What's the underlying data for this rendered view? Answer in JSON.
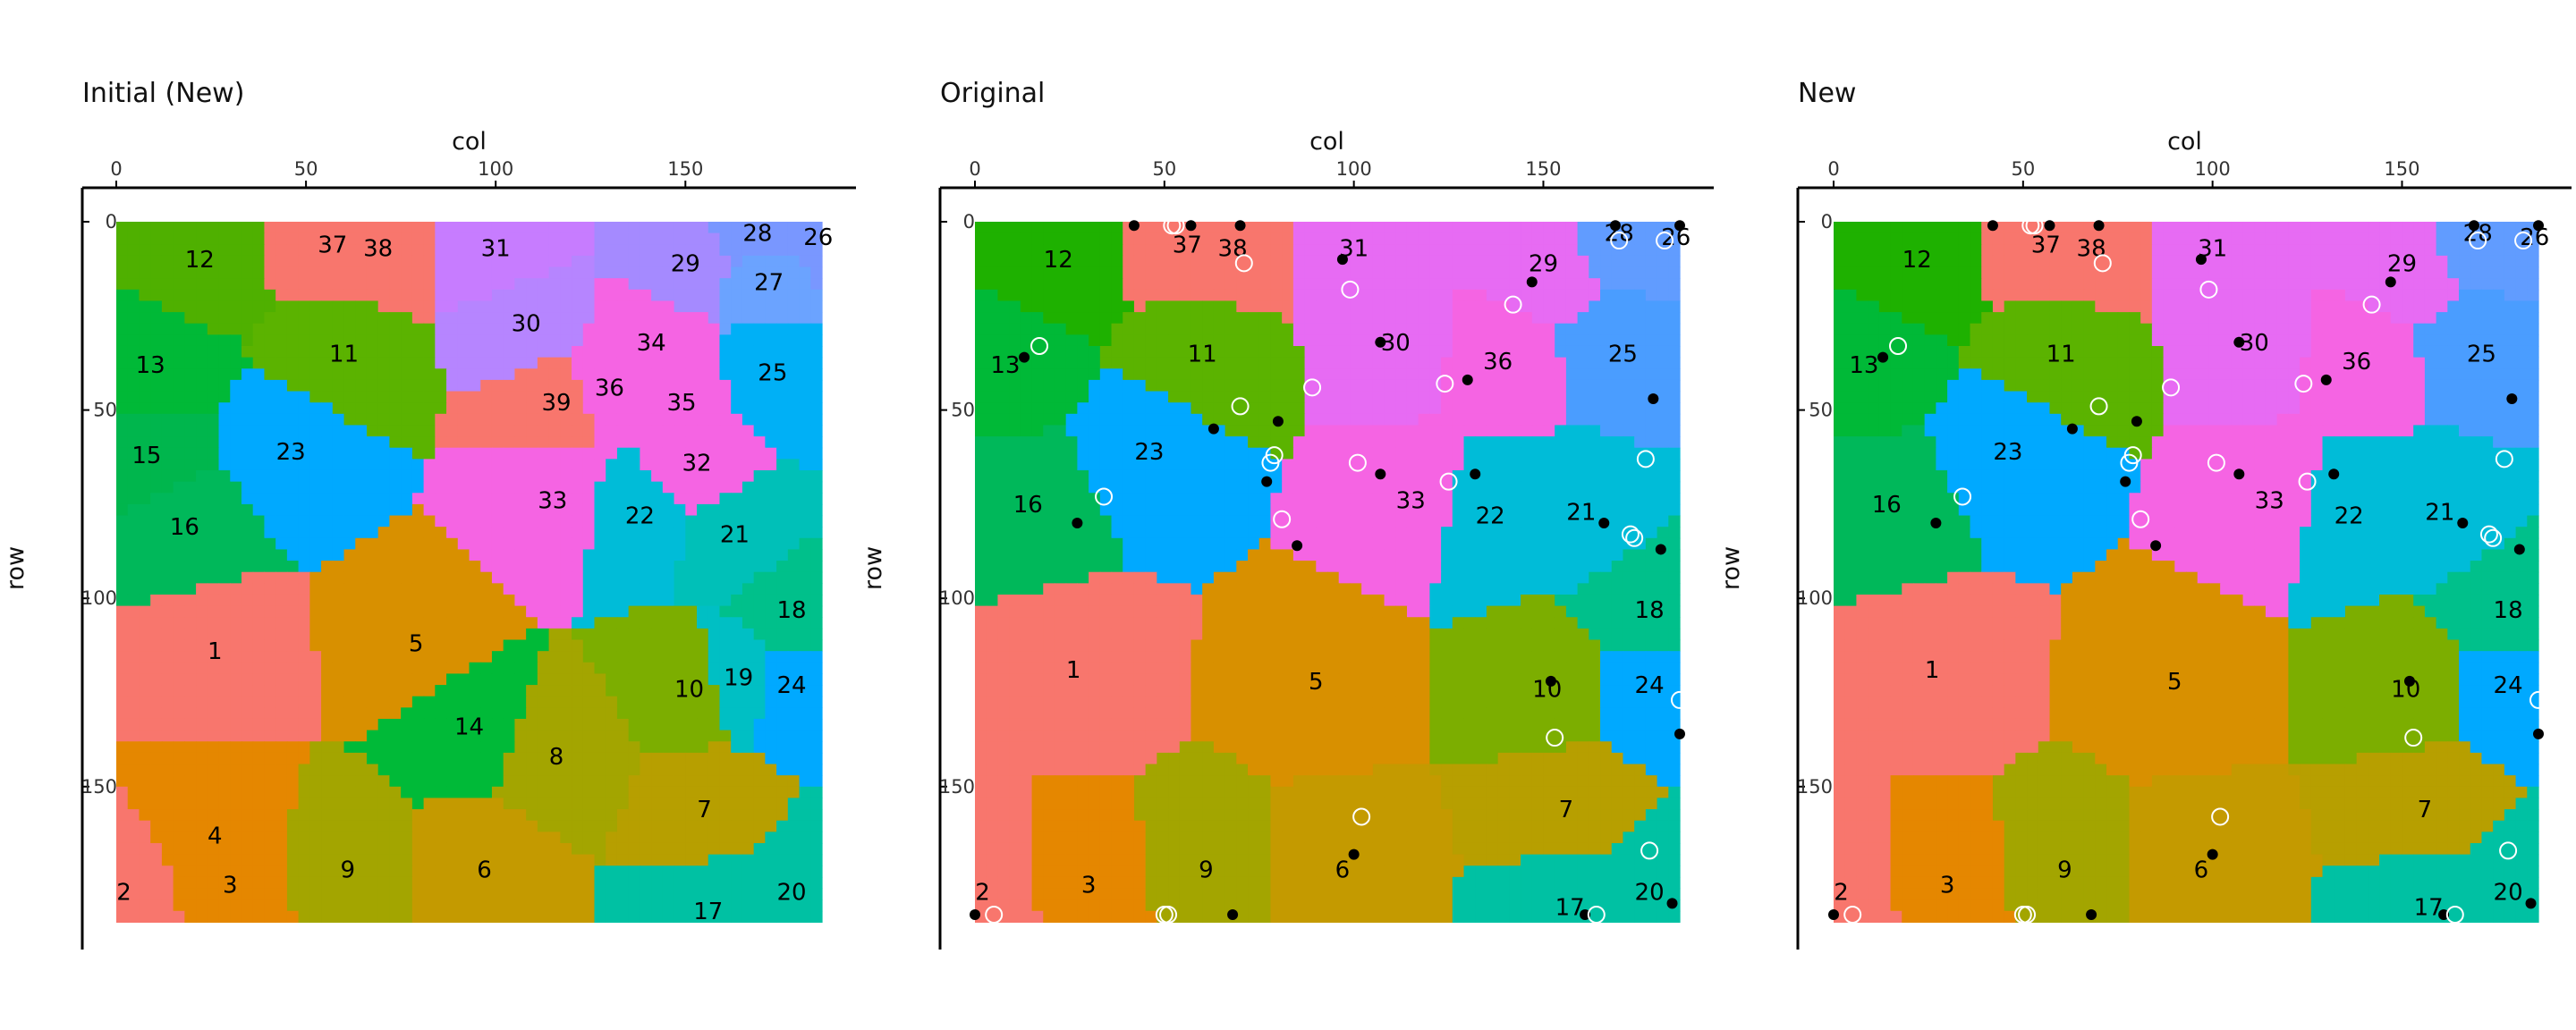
{
  "chart_data": [
    {
      "type": "heatmap",
      "title": "Initial (New)",
      "xlabel": "col",
      "ylabel": "row",
      "xlim": [
        0,
        186
      ],
      "ylim": [
        0,
        184
      ],
      "y_reversed": true,
      "x_ticks": [
        0,
        50,
        100,
        150
      ],
      "y_ticks": [
        0,
        50,
        100,
        150
      ],
      "grid": false,
      "regions": [
        {
          "label": "12",
          "col": 22,
          "row": 10,
          "color": "#4fb000"
        },
        {
          "label": "37",
          "col": 57,
          "row": 6,
          "color": "#f8766d"
        },
        {
          "label": "38",
          "col": 69,
          "row": 7,
          "color": "#f8766d"
        },
        {
          "label": "31",
          "col": 100,
          "row": 7,
          "color": "#c77cff"
        },
        {
          "label": "29",
          "col": 150,
          "row": 11,
          "color": "#a58aff"
        },
        {
          "label": "28",
          "col": 169,
          "row": 3,
          "color": "#7997ff"
        },
        {
          "label": "26",
          "col": 185,
          "row": 4,
          "color": "#7997ff"
        },
        {
          "label": "27",
          "col": 172,
          "row": 16,
          "color": "#6ba3ff"
        },
        {
          "label": "30",
          "col": 108,
          "row": 27,
          "color": "#b685ff"
        },
        {
          "label": "34",
          "col": 141,
          "row": 32,
          "color": "#f564e3"
        },
        {
          "label": "25",
          "col": 173,
          "row": 40,
          "color": "#00b0f6"
        },
        {
          "label": "13",
          "col": 9,
          "row": 38,
          "color": "#00b937"
        },
        {
          "label": "11",
          "col": 60,
          "row": 35,
          "color": "#5bb300"
        },
        {
          "label": "39",
          "col": 116,
          "row": 48,
          "color": "#f8766d"
        },
        {
          "label": "36",
          "col": 130,
          "row": 44,
          "color": "#f564e3"
        },
        {
          "label": "35",
          "col": 149,
          "row": 48,
          "color": "#f564e3"
        },
        {
          "label": "23",
          "col": 46,
          "row": 61,
          "color": "#00a9ff"
        },
        {
          "label": "15",
          "col": 8,
          "row": 62,
          "color": "#00b64d"
        },
        {
          "label": "32",
          "col": 153,
          "row": 64,
          "color": "#f564e3"
        },
        {
          "label": "33",
          "col": 115,
          "row": 74,
          "color": "#f564e3"
        },
        {
          "label": "22",
          "col": 138,
          "row": 78,
          "color": "#00bcd8"
        },
        {
          "label": "21",
          "col": 163,
          "row": 83,
          "color": "#00c0b8"
        },
        {
          "label": "16",
          "col": 18,
          "row": 81,
          "color": "#00b85a"
        },
        {
          "label": "18",
          "col": 178,
          "row": 103,
          "color": "#00c08b"
        },
        {
          "label": "1",
          "col": 26,
          "row": 114,
          "color": "#f8766d"
        },
        {
          "label": "5",
          "col": 79,
          "row": 112,
          "color": "#d89000"
        },
        {
          "label": "10",
          "col": 151,
          "row": 124,
          "color": "#7cae00"
        },
        {
          "label": "19",
          "col": 164,
          "row": 121,
          "color": "#00bfc4"
        },
        {
          "label": "24",
          "col": 178,
          "row": 123,
          "color": "#00a9ff"
        },
        {
          "label": "14",
          "col": 93,
          "row": 134,
          "color": "#00ba38"
        },
        {
          "label": "8",
          "col": 116,
          "row": 142,
          "color": "#a3a500"
        },
        {
          "label": "7",
          "col": 155,
          "row": 156,
          "color": "#b79f00"
        },
        {
          "label": "4",
          "col": 26,
          "row": 163,
          "color": "#e58700"
        },
        {
          "label": "9",
          "col": 61,
          "row": 172,
          "color": "#a3a500"
        },
        {
          "label": "6",
          "col": 97,
          "row": 172,
          "color": "#c49a00"
        },
        {
          "label": "3",
          "col": 30,
          "row": 176,
          "color": "#e58700"
        },
        {
          "label": "2",
          "col": 2,
          "row": 178,
          "color": "#f8766d"
        },
        {
          "label": "17",
          "col": 156,
          "row": 183,
          "color": "#00c1a3"
        },
        {
          "label": "20",
          "col": 178,
          "row": 178,
          "color": "#00c1a3"
        }
      ]
    },
    {
      "type": "heatmap",
      "title": "Original",
      "xlabel": "col",
      "ylabel": "row",
      "xlim": [
        0,
        186
      ],
      "ylim": [
        0,
        184
      ],
      "y_reversed": true,
      "x_ticks": [
        0,
        50,
        100,
        150
      ],
      "y_ticks": [
        0,
        50,
        100,
        150
      ],
      "grid": false,
      "regions": [
        {
          "label": "12",
          "col": 22,
          "row": 10,
          "color": "#1eb100"
        },
        {
          "label": "37",
          "col": 56,
          "row": 6,
          "color": "#f8766d"
        },
        {
          "label": "38",
          "col": 68,
          "row": 7,
          "color": "#f8766d"
        },
        {
          "label": "31",
          "col": 100,
          "row": 7,
          "color": "#e76bf3"
        },
        {
          "label": "29",
          "col": 150,
          "row": 11,
          "color": "#e76bf3"
        },
        {
          "label": "28",
          "col": 170,
          "row": 3,
          "color": "#619cff"
        },
        {
          "label": "26",
          "col": 185,
          "row": 4,
          "color": "#619cff"
        },
        {
          "label": "30",
          "col": 111,
          "row": 32,
          "color": "#e76bf3"
        },
        {
          "label": "36",
          "col": 138,
          "row": 37,
          "color": "#f564e3"
        },
        {
          "label": "25",
          "col": 171,
          "row": 35,
          "color": "#4a9dff"
        },
        {
          "label": "13",
          "col": 8,
          "row": 38,
          "color": "#00b937"
        },
        {
          "label": "11",
          "col": 60,
          "row": 35,
          "color": "#5bb300"
        },
        {
          "label": "23",
          "col": 46,
          "row": 61,
          "color": "#00a9ff"
        },
        {
          "label": "33",
          "col": 115,
          "row": 74,
          "color": "#f564e3"
        },
        {
          "label": "22",
          "col": 136,
          "row": 78,
          "color": "#00bcd8"
        },
        {
          "label": "21",
          "col": 160,
          "row": 77,
          "color": "#00bcd8"
        },
        {
          "label": "16",
          "col": 14,
          "row": 75,
          "color": "#00b85a"
        },
        {
          "label": "18",
          "col": 178,
          "row": 103,
          "color": "#00c08b"
        },
        {
          "label": "1",
          "col": 26,
          "row": 119,
          "color": "#f8766d"
        },
        {
          "label": "5",
          "col": 90,
          "row": 122,
          "color": "#d89000"
        },
        {
          "label": "10",
          "col": 151,
          "row": 124,
          "color": "#7cae00"
        },
        {
          "label": "24",
          "col": 178,
          "row": 123,
          "color": "#00a9ff"
        },
        {
          "label": "7",
          "col": 156,
          "row": 156,
          "color": "#b79f00"
        },
        {
          "label": "9",
          "col": 61,
          "row": 172,
          "color": "#a3a500"
        },
        {
          "label": "6",
          "col": 97,
          "row": 172,
          "color": "#c49a00"
        },
        {
          "label": "3",
          "col": 30,
          "row": 176,
          "color": "#e58700"
        },
        {
          "label": "2",
          "col": 2,
          "row": 178,
          "color": "#f8766d"
        },
        {
          "label": "17",
          "col": 157,
          "row": 182,
          "color": "#00c1a3"
        },
        {
          "label": "20",
          "col": 178,
          "row": 178,
          "color": "#00c1a3"
        }
      ],
      "filled_points": [
        {
          "col": 42,
          "row": 1
        },
        {
          "col": 57,
          "row": 1
        },
        {
          "col": 70,
          "row": 1
        },
        {
          "col": 97,
          "row": 10
        },
        {
          "col": 169,
          "row": 1
        },
        {
          "col": 186,
          "row": 1
        },
        {
          "col": 147,
          "row": 16
        },
        {
          "col": 107,
          "row": 32
        },
        {
          "col": 130,
          "row": 42
        },
        {
          "col": 179,
          "row": 47
        },
        {
          "col": 80,
          "row": 53
        },
        {
          "col": 63,
          "row": 55
        },
        {
          "col": 77,
          "row": 69
        },
        {
          "col": 107,
          "row": 67
        },
        {
          "col": 132,
          "row": 67
        },
        {
          "col": 27,
          "row": 80
        },
        {
          "col": 166,
          "row": 80
        },
        {
          "col": 181,
          "row": 87
        },
        {
          "col": 85,
          "row": 86
        },
        {
          "col": 152,
          "row": 122
        },
        {
          "col": 186,
          "row": 136
        },
        {
          "col": 100,
          "row": 168
        },
        {
          "col": 184,
          "row": 181
        },
        {
          "col": 0,
          "row": 184
        },
        {
          "col": 68,
          "row": 184
        },
        {
          "col": 161,
          "row": 184
        },
        {
          "col": 13,
          "row": 36
        }
      ],
      "open_points": [
        {
          "col": 52,
          "row": 1
        },
        {
          "col": 53,
          "row": 1
        },
        {
          "col": 71,
          "row": 11
        },
        {
          "col": 99,
          "row": 18
        },
        {
          "col": 170,
          "row": 5
        },
        {
          "col": 182,
          "row": 5
        },
        {
          "col": 142,
          "row": 22
        },
        {
          "col": 17,
          "row": 33
        },
        {
          "col": 124,
          "row": 43
        },
        {
          "col": 89,
          "row": 44
        },
        {
          "col": 70,
          "row": 49
        },
        {
          "col": 177,
          "row": 63
        },
        {
          "col": 79,
          "row": 62
        },
        {
          "col": 78,
          "row": 64
        },
        {
          "col": 101,
          "row": 64
        },
        {
          "col": 125,
          "row": 69
        },
        {
          "col": 34,
          "row": 73
        },
        {
          "col": 81,
          "row": 79
        },
        {
          "col": 173,
          "row": 83
        },
        {
          "col": 174,
          "row": 84
        },
        {
          "col": 186,
          "row": 127
        },
        {
          "col": 153,
          "row": 137
        },
        {
          "col": 102,
          "row": 158
        },
        {
          "col": 178,
          "row": 167
        },
        {
          "col": 5,
          "row": 184
        },
        {
          "col": 50,
          "row": 184
        },
        {
          "col": 51,
          "row": 184
        },
        {
          "col": 164,
          "row": 184
        }
      ]
    },
    {
      "type": "heatmap",
      "title": "New",
      "xlabel": "col",
      "ylabel": "row",
      "xlim": [
        0,
        186
      ],
      "ylim": [
        0,
        184
      ],
      "y_reversed": true,
      "x_ticks": [
        0,
        50,
        100,
        150
      ],
      "y_ticks": [
        0,
        50,
        100,
        150
      ],
      "grid": false,
      "regions": [
        {
          "label": "12",
          "col": 22,
          "row": 10,
          "color": "#1eb100"
        },
        {
          "label": "37",
          "col": 56,
          "row": 6,
          "color": "#f8766d"
        },
        {
          "label": "38",
          "col": 68,
          "row": 7,
          "color": "#f8766d"
        },
        {
          "label": "31",
          "col": 100,
          "row": 7,
          "color": "#e76bf3"
        },
        {
          "label": "29",
          "col": 150,
          "row": 11,
          "color": "#e76bf3"
        },
        {
          "label": "28",
          "col": 170,
          "row": 3,
          "color": "#619cff"
        },
        {
          "label": "26",
          "col": 185,
          "row": 4,
          "color": "#619cff"
        },
        {
          "label": "30",
          "col": 111,
          "row": 32,
          "color": "#e76bf3"
        },
        {
          "label": "36",
          "col": 138,
          "row": 37,
          "color": "#f564e3"
        },
        {
          "label": "25",
          "col": 171,
          "row": 35,
          "color": "#4a9dff"
        },
        {
          "label": "13",
          "col": 8,
          "row": 38,
          "color": "#00b937"
        },
        {
          "label": "11",
          "col": 60,
          "row": 35,
          "color": "#5bb300"
        },
        {
          "label": "23",
          "col": 46,
          "row": 61,
          "color": "#00a9ff"
        },
        {
          "label": "33",
          "col": 115,
          "row": 74,
          "color": "#f564e3"
        },
        {
          "label": "22",
          "col": 136,
          "row": 78,
          "color": "#00bcd8"
        },
        {
          "label": "21",
          "col": 160,
          "row": 77,
          "color": "#00bcd8"
        },
        {
          "label": "16",
          "col": 14,
          "row": 75,
          "color": "#00b85a"
        },
        {
          "label": "18",
          "col": 178,
          "row": 103,
          "color": "#00c08b"
        },
        {
          "label": "1",
          "col": 26,
          "row": 119,
          "color": "#f8766d"
        },
        {
          "label": "5",
          "col": 90,
          "row": 122,
          "color": "#d89000"
        },
        {
          "label": "10",
          "col": 151,
          "row": 124,
          "color": "#7cae00"
        },
        {
          "label": "24",
          "col": 178,
          "row": 123,
          "color": "#00a9ff"
        },
        {
          "label": "7",
          "col": 156,
          "row": 156,
          "color": "#b79f00"
        },
        {
          "label": "9",
          "col": 61,
          "row": 172,
          "color": "#a3a500"
        },
        {
          "label": "6",
          "col": 97,
          "row": 172,
          "color": "#c49a00"
        },
        {
          "label": "3",
          "col": 30,
          "row": 176,
          "color": "#e58700"
        },
        {
          "label": "2",
          "col": 2,
          "row": 178,
          "color": "#f8766d"
        },
        {
          "label": "17",
          "col": 157,
          "row": 182,
          "color": "#00c1a3"
        },
        {
          "label": "20",
          "col": 178,
          "row": 178,
          "color": "#00c1a3"
        }
      ],
      "filled_points": [
        {
          "col": 42,
          "row": 1
        },
        {
          "col": 57,
          "row": 1
        },
        {
          "col": 70,
          "row": 1
        },
        {
          "col": 97,
          "row": 10
        },
        {
          "col": 169,
          "row": 1
        },
        {
          "col": 186,
          "row": 1
        },
        {
          "col": 147,
          "row": 16
        },
        {
          "col": 107,
          "row": 32
        },
        {
          "col": 130,
          "row": 42
        },
        {
          "col": 179,
          "row": 47
        },
        {
          "col": 80,
          "row": 53
        },
        {
          "col": 63,
          "row": 55
        },
        {
          "col": 77,
          "row": 69
        },
        {
          "col": 107,
          "row": 67
        },
        {
          "col": 132,
          "row": 67
        },
        {
          "col": 27,
          "row": 80
        },
        {
          "col": 166,
          "row": 80
        },
        {
          "col": 181,
          "row": 87
        },
        {
          "col": 85,
          "row": 86
        },
        {
          "col": 152,
          "row": 122
        },
        {
          "col": 186,
          "row": 136
        },
        {
          "col": 100,
          "row": 168
        },
        {
          "col": 184,
          "row": 181
        },
        {
          "col": 0,
          "row": 184
        },
        {
          "col": 68,
          "row": 184
        },
        {
          "col": 161,
          "row": 184
        },
        {
          "col": 13,
          "row": 36
        }
      ],
      "open_points": [
        {
          "col": 52,
          "row": 1
        },
        {
          "col": 53,
          "row": 1
        },
        {
          "col": 71,
          "row": 11
        },
        {
          "col": 99,
          "row": 18
        },
        {
          "col": 170,
          "row": 5
        },
        {
          "col": 182,
          "row": 5
        },
        {
          "col": 142,
          "row": 22
        },
        {
          "col": 17,
          "row": 33
        },
        {
          "col": 124,
          "row": 43
        },
        {
          "col": 89,
          "row": 44
        },
        {
          "col": 70,
          "row": 49
        },
        {
          "col": 177,
          "row": 63
        },
        {
          "col": 79,
          "row": 62
        },
        {
          "col": 78,
          "row": 64
        },
        {
          "col": 101,
          "row": 64
        },
        {
          "col": 125,
          "row": 69
        },
        {
          "col": 34,
          "row": 73
        },
        {
          "col": 81,
          "row": 79
        },
        {
          "col": 173,
          "row": 83
        },
        {
          "col": 174,
          "row": 84
        },
        {
          "col": 186,
          "row": 127
        },
        {
          "col": 153,
          "row": 137
        },
        {
          "col": 102,
          "row": 158
        },
        {
          "col": 178,
          "row": 167
        },
        {
          "col": 5,
          "row": 184
        },
        {
          "col": 50,
          "row": 184
        },
        {
          "col": 51,
          "row": 184
        },
        {
          "col": 164,
          "row": 184
        }
      ]
    }
  ]
}
